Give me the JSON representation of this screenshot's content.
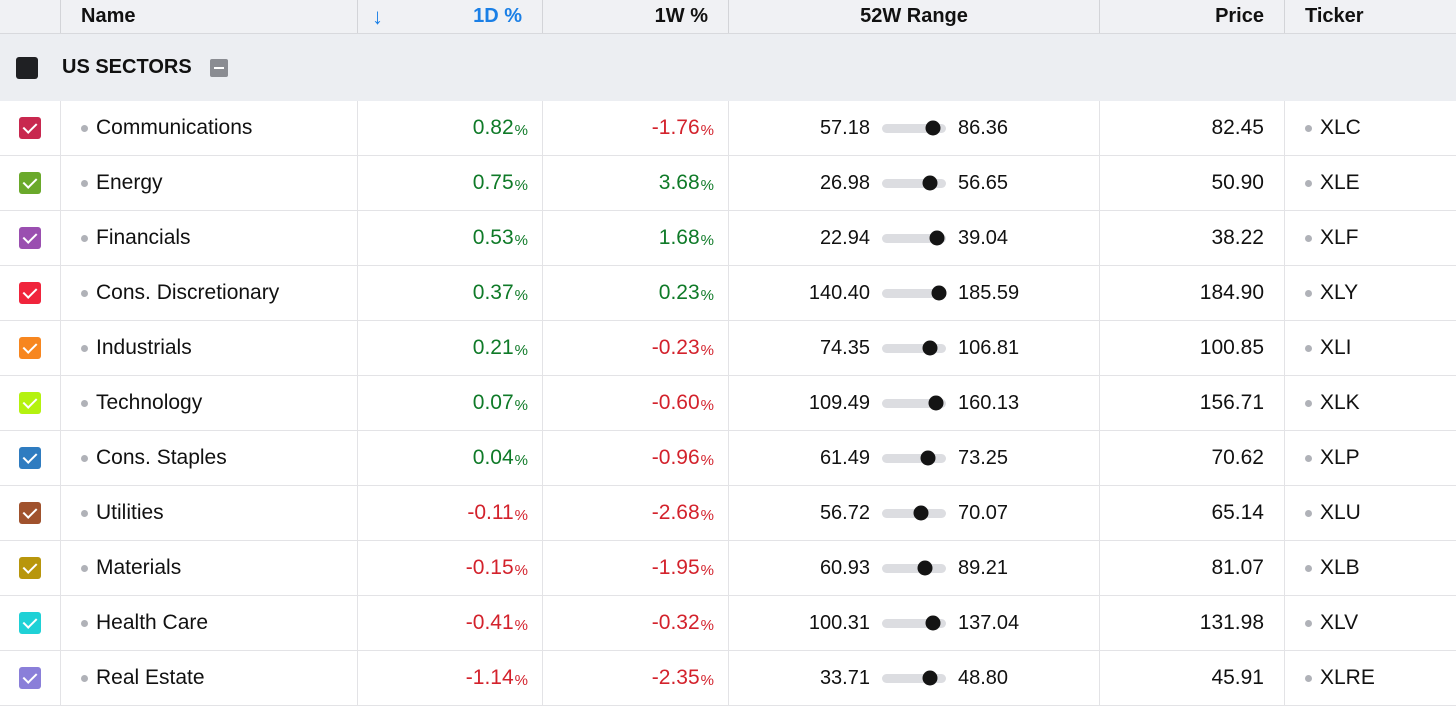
{
  "columns": {
    "name": "Name",
    "sort_arrow": "↓",
    "d1": "1D %",
    "w1": "1W %",
    "range": "52W Range",
    "price": "Price",
    "ticker": "Ticker"
  },
  "group": {
    "label": "US SECTORS",
    "checkbox_color": "#1f2023"
  },
  "rows": [
    {
      "color": "#c8284f",
      "name": "Communications",
      "d1": "0.82",
      "d1_sign": "pos",
      "w1": "-1.76",
      "w1_sign": "neg",
      "low": "57.18",
      "high": "86.36",
      "price": "82.45",
      "ticker": "XLC"
    },
    {
      "color": "#6aa92b",
      "name": "Energy",
      "d1": "0.75",
      "d1_sign": "pos",
      "w1": "3.68",
      "w1_sign": "pos",
      "low": "26.98",
      "high": "56.65",
      "price": "50.90",
      "ticker": "XLE"
    },
    {
      "color": "#9a4fb0",
      "name": "Financials",
      "d1": "0.53",
      "d1_sign": "pos",
      "w1": "1.68",
      "w1_sign": "pos",
      "low": "22.94",
      "high": "39.04",
      "price": "38.22",
      "ticker": "XLF"
    },
    {
      "color": "#f0243c",
      "name": "Cons. Discretionary",
      "d1": "0.37",
      "d1_sign": "pos",
      "w1": "0.23",
      "w1_sign": "pos",
      "low": "140.40",
      "high": "185.59",
      "price": "184.90",
      "ticker": "XLY"
    },
    {
      "color": "#f7861f",
      "name": "Industrials",
      "d1": "0.21",
      "d1_sign": "pos",
      "w1": "-0.23",
      "w1_sign": "neg",
      "low": "74.35",
      "high": "106.81",
      "price": "100.85",
      "ticker": "XLI"
    },
    {
      "color": "#b4f20f",
      "name": "Technology",
      "d1": "0.07",
      "d1_sign": "pos",
      "w1": "-0.60",
      "w1_sign": "neg",
      "low": "109.49",
      "high": "160.13",
      "price": "156.71",
      "ticker": "XLK"
    },
    {
      "color": "#2f7cc0",
      "name": "Cons. Staples",
      "d1": "0.04",
      "d1_sign": "pos",
      "w1": "-0.96",
      "w1_sign": "neg",
      "low": "61.49",
      "high": "73.25",
      "price": "70.62",
      "ticker": "XLP"
    },
    {
      "color": "#a0522d",
      "name": "Utilities",
      "d1": "-0.11",
      "d1_sign": "neg",
      "w1": "-2.68",
      "w1_sign": "neg",
      "low": "56.72",
      "high": "70.07",
      "price": "65.14",
      "ticker": "XLU"
    },
    {
      "color": "#b8960c",
      "name": "Materials",
      "d1": "-0.15",
      "d1_sign": "neg",
      "w1": "-1.95",
      "w1_sign": "neg",
      "low": "60.93",
      "high": "89.21",
      "price": "81.07",
      "ticker": "XLB"
    },
    {
      "color": "#1fd1d6",
      "name": "Health Care",
      "d1": "-0.41",
      "d1_sign": "neg",
      "w1": "-0.32",
      "w1_sign": "neg",
      "low": "100.31",
      "high": "137.04",
      "price": "131.98",
      "ticker": "XLV"
    },
    {
      "color": "#8a7fd9",
      "name": "Real Estate",
      "d1": "-1.14",
      "d1_sign": "neg",
      "w1": "-2.35",
      "w1_sign": "neg",
      "low": "33.71",
      "high": "48.80",
      "price": "45.91",
      "ticker": "XLRE"
    }
  ]
}
